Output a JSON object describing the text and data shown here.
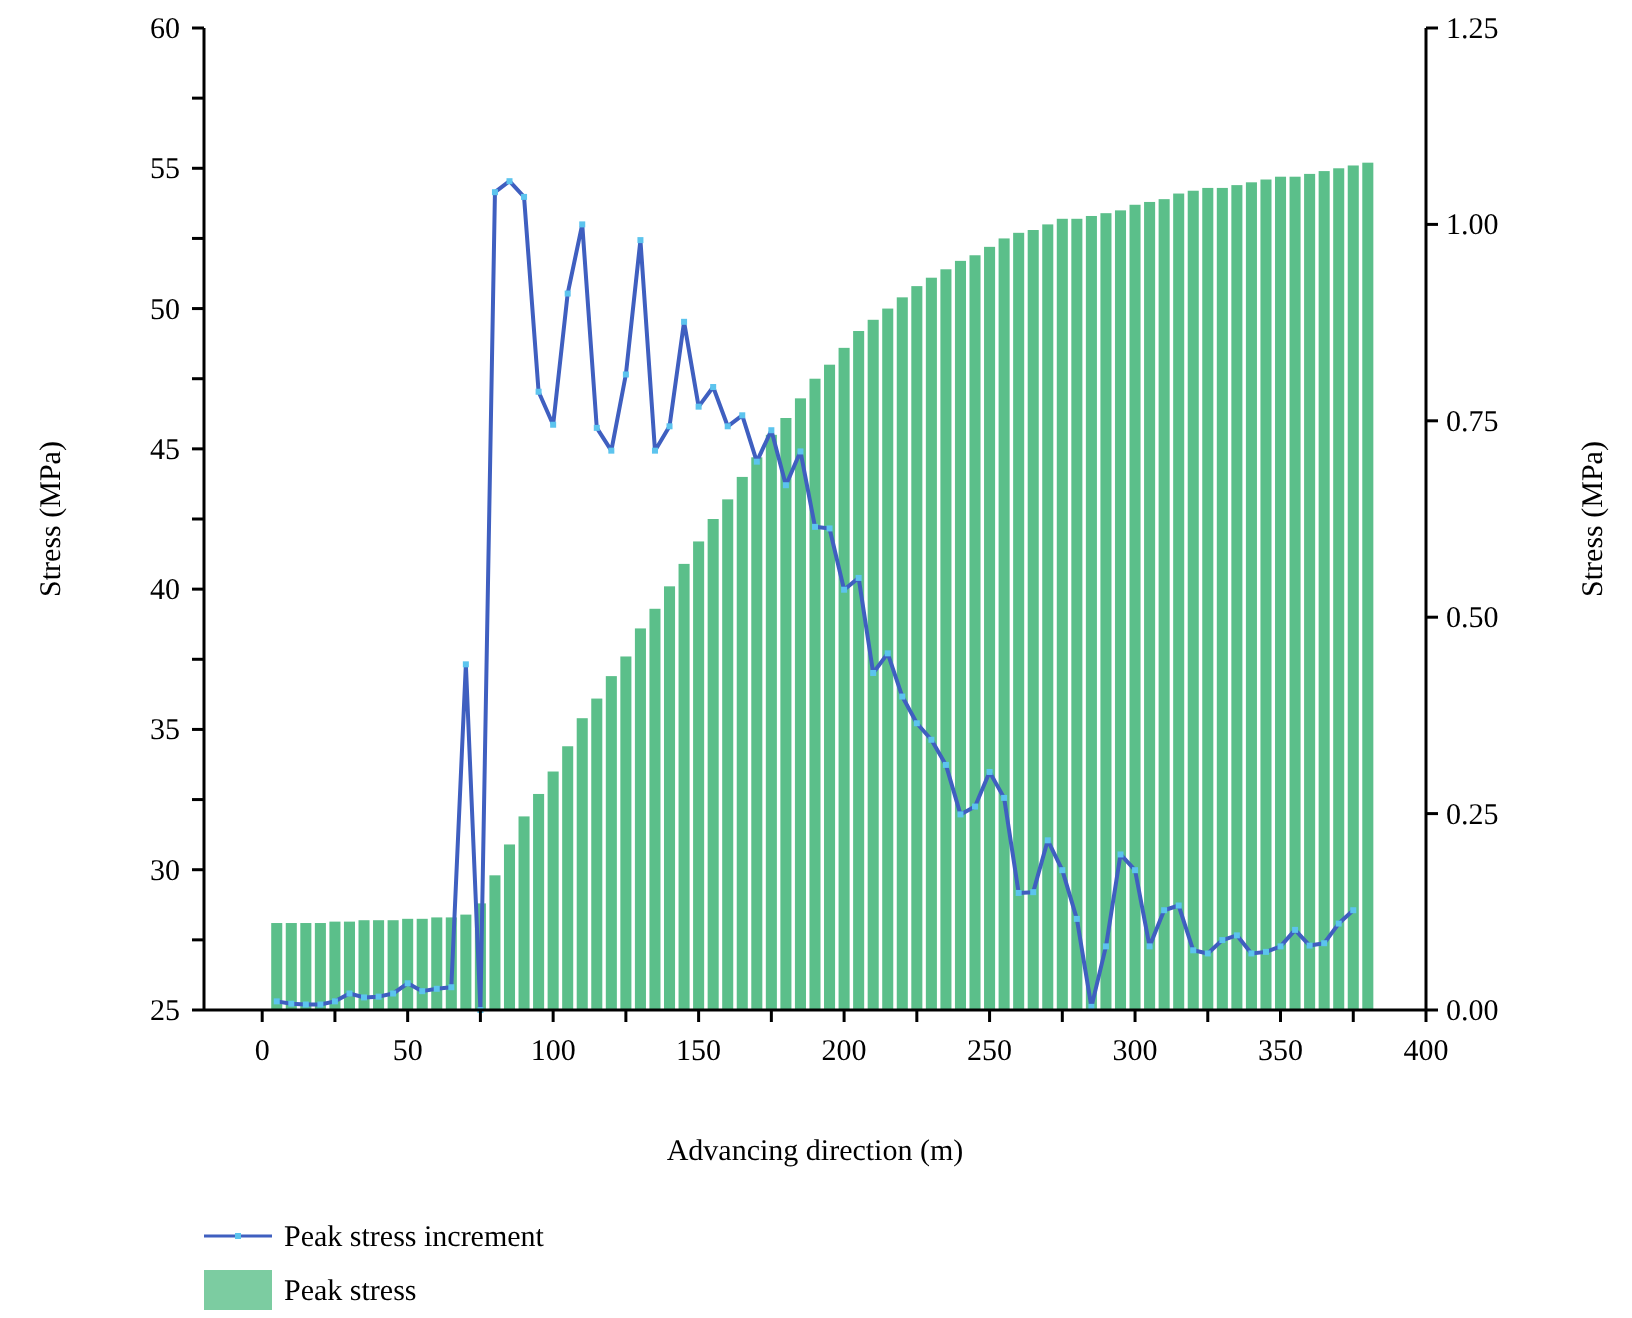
{
  "chart_data": {
    "type": "bar",
    "xlabel": "Advancing direction (m)",
    "ylabel": "Stress (MPa)",
    "y2label": "Stress (MPa)",
    "xlim": [
      -20,
      400
    ],
    "xticks": [
      0,
      {
        "value": 25,
        "label": null
      },
      50,
      {
        "value": 75,
        "label": null
      },
      100,
      {
        "value": 125,
        "label": null
      },
      150,
      {
        "value": 175,
        "label": null
      },
      200,
      {
        "value": 225,
        "label": null
      },
      250,
      {
        "value": 275,
        "label": null
      },
      300,
      {
        "value": 325,
        "label": null
      },
      350,
      {
        "value": 375,
        "label": null
      },
      400
    ],
    "ylim": [
      25,
      60
    ],
    "yticks": [
      25,
      {
        "value": 27.5,
        "label": null
      },
      30,
      {
        "value": 32.5,
        "label": null
      },
      35,
      {
        "value": 37.5,
        "label": null
      },
      40,
      {
        "value": 42.5,
        "label": null
      },
      45,
      {
        "value": 47.5,
        "label": null
      },
      50,
      {
        "value": 52.5,
        "label": null
      },
      55,
      {
        "value": 57.5,
        "label": null
      },
      60
    ],
    "y2lim": [
      0,
      1.25
    ],
    "y2ticks": [
      {
        "value": 0,
        "label": "0.00"
      },
      {
        "value": 0.25,
        "label": "0.25"
      },
      {
        "value": 0.5,
        "label": "0.50"
      },
      {
        "value": 0.75,
        "label": "0.75"
      },
      {
        "value": 1,
        "label": "1.00"
      },
      {
        "value": 1.25,
        "label": "1.25"
      }
    ],
    "grid": false,
    "legend": "bottom",
    "marker": "square",
    "line_style": "solid",
    "series": [
      {
        "name": "Peak stress increment",
        "type": "line",
        "axis": "y2",
        "color": "#3f5fc0",
        "x": [
          5,
          10,
          15,
          20,
          25,
          30,
          35,
          40,
          45,
          50,
          55,
          60,
          65,
          70,
          75,
          80,
          85,
          90,
          95,
          100,
          105,
          110,
          115,
          120,
          125,
          130,
          135,
          140,
          145,
          150,
          155,
          160,
          165,
          170,
          175,
          180,
          185,
          190,
          195,
          200,
          205,
          210,
          215,
          220,
          225,
          230,
          235,
          240,
          245,
          250,
          255,
          260,
          265,
          270,
          275,
          280,
          285,
          290,
          295,
          300,
          305,
          310,
          315,
          320,
          325,
          330,
          335,
          340,
          345,
          350,
          355,
          360,
          365,
          370,
          375
        ],
        "values": [
          0.011,
          0.008,
          0.007,
          0.007,
          0.011,
          0.021,
          0.016,
          0.017,
          0.021,
          0.034,
          0.024,
          0.027,
          0.029,
          0.44,
          0.0,
          1.041,
          1.055,
          1.035,
          0.787,
          0.745,
          0.912,
          1.0,
          0.741,
          0.712,
          0.809,
          0.98,
          0.712,
          0.743,
          0.876,
          0.768,
          0.793,
          0.743,
          0.757,
          0.698,
          0.738,
          0.668,
          0.711,
          0.615,
          0.613,
          0.535,
          0.55,
          0.429,
          0.454,
          0.399,
          0.365,
          0.344,
          0.312,
          0.249,
          0.259,
          0.303,
          0.27,
          0.149,
          0.15,
          0.216,
          0.178,
          0.116,
          0.004,
          0.081,
          0.198,
          0.178,
          0.081,
          0.127,
          0.133,
          0.076,
          0.072,
          0.089,
          0.095,
          0.072,
          0.074,
          0.081,
          0.102,
          0.082,
          0.085,
          0.11,
          0.127
        ]
      },
      {
        "name": "Peak stress",
        "color": "#5bbf8a",
        "x": [
          5,
          10,
          15,
          20,
          25,
          30,
          35,
          40,
          45,
          50,
          55,
          60,
          65,
          70,
          75,
          80,
          85,
          90,
          95,
          100,
          105,
          110,
          115,
          120,
          125,
          130,
          135,
          140,
          145,
          150,
          155,
          160,
          165,
          170,
          175,
          180,
          185,
          190,
          195,
          200,
          205,
          210,
          215,
          220,
          225,
          230,
          235,
          240,
          245,
          250,
          255,
          260,
          265,
          270,
          275,
          280,
          285,
          290,
          295,
          300,
          305,
          310,
          315,
          320,
          325,
          330,
          335,
          340,
          345,
          350,
          355,
          360,
          365,
          370,
          375,
          380
        ],
        "values": [
          28.1,
          28.1,
          28.1,
          28.1,
          28.15,
          28.15,
          28.2,
          28.2,
          28.2,
          28.25,
          28.25,
          28.3,
          28.3,
          28.4,
          28.8,
          29.8,
          30.9,
          31.9,
          32.7,
          33.5,
          34.4,
          35.4,
          36.1,
          36.9,
          37.6,
          38.6,
          39.3,
          40.1,
          40.9,
          41.7,
          42.5,
          43.2,
          44.0,
          44.7,
          45.5,
          46.1,
          46.8,
          47.5,
          48.0,
          48.6,
          49.2,
          49.6,
          50.0,
          50.4,
          50.8,
          51.1,
          51.4,
          51.7,
          51.9,
          52.2,
          52.5,
          52.7,
          52.8,
          53.0,
          53.2,
          53.2,
          53.3,
          53.4,
          53.5,
          53.7,
          53.8,
          53.9,
          54.1,
          54.2,
          54.3,
          54.3,
          54.4,
          54.5,
          54.6,
          54.7,
          54.7,
          54.8,
          54.9,
          55.0,
          55.1,
          55.2
        ]
      }
    ]
  }
}
